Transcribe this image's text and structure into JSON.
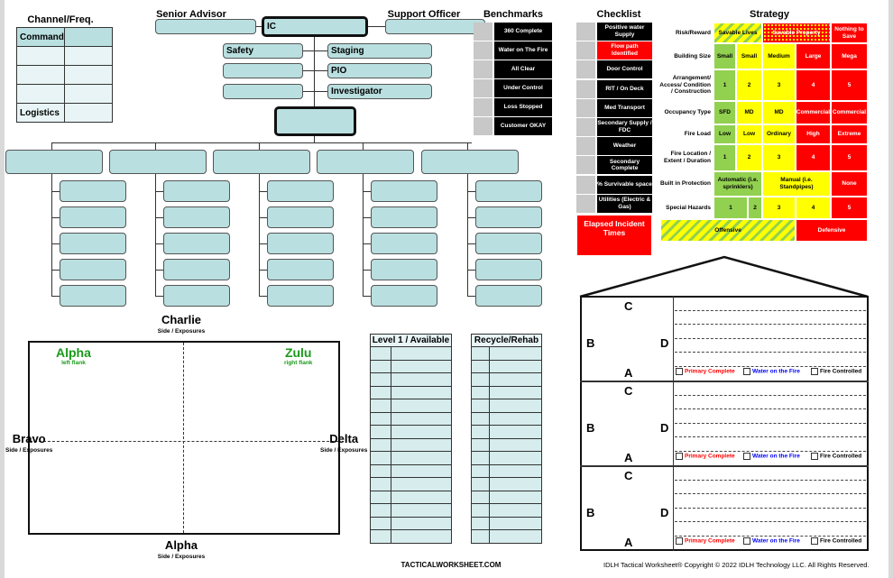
{
  "channel": {
    "title": "Channel/Freq.",
    "rows": [
      "Command",
      "",
      "",
      "",
      "Logistics"
    ]
  },
  "org": {
    "senior_advisor": "Senior Advisor",
    "support_officer": "Support Officer",
    "ic": "IC",
    "left": [
      "Safety",
      "",
      ""
    ],
    "right": [
      "Staging",
      "PIO",
      "Investigator"
    ]
  },
  "benchmarks": {
    "title": "Benchmarks",
    "items": [
      "360 Complete",
      "Water on The Fire",
      "All Clear",
      "Under Control",
      "Loss Stopped",
      "Customer OKAY"
    ]
  },
  "checklist": {
    "title": "Checklist",
    "items": [
      "Positive water Supply",
      "Flow path Identified",
      "Door Control",
      "RIT / On Deck",
      "Med Transport",
      "Secondary Supply / FDC",
      "Weather",
      "Secondary Complete",
      "% Survivable space",
      "Utilities (Electric & Gas)"
    ],
    "highlighted": "Flow path Identified",
    "elapsed": "Elapsed Incident Times"
  },
  "strategy": {
    "title": "Strategy",
    "rows": [
      {
        "label": "Risk/Reward",
        "cells": [
          "Savable Lives",
          "Savable Property",
          "Nothing to Save"
        ]
      },
      {
        "label": "Building Size",
        "cells": [
          "Small",
          "Small",
          "Medium",
          "Large",
          "Mega"
        ]
      },
      {
        "label": "Arrangement/ Access/ Condition / Construction",
        "cells": [
          "1",
          "2",
          "3",
          "4",
          "5"
        ]
      },
      {
        "label": "Occupancy Type",
        "cells": [
          "SFD",
          "MD",
          "MD",
          "Commercial",
          "Commercial"
        ]
      },
      {
        "label": "Fire Load",
        "cells": [
          "Low",
          "Low",
          "Ordinary",
          "High",
          "Extreme"
        ]
      },
      {
        "label": "Fire Location / Extent / Duration",
        "cells": [
          "1",
          "2",
          "3",
          "4",
          "5"
        ]
      },
      {
        "label": "Built in Protection",
        "cells": [
          "Automatic (i.e. sprinklers)",
          "Manual (i.e. Standpipes)",
          "None"
        ]
      },
      {
        "label": "Special Hazards",
        "cells": [
          "1",
          "2",
          "3",
          "4",
          "5"
        ]
      }
    ],
    "offensive": "Offensive",
    "defensive": "Defensive",
    "colors": {
      "green": "#92d050",
      "yellow": "#ffff00",
      "red": "#ff0000"
    }
  },
  "sides": {
    "charlie": "Charlie",
    "bravo": "Bravo",
    "delta": "Delta",
    "alpha": "Alpha",
    "sub": "Side / Exposures",
    "alpha_flank": "Alpha",
    "alpha_flank_sub": "left flank",
    "zulu": "Zulu",
    "zulu_sub": "right flank"
  },
  "tables": {
    "level1": "Level 1 / Available",
    "rehab": "Recycle/Rehab"
  },
  "house": {
    "c": "C",
    "b": "B",
    "d": "D",
    "a": "A",
    "checks": [
      "Primary Complete",
      "Water on the Fire",
      "Fire Controlled"
    ],
    "check_colors": [
      "#ff0000",
      "#0000ff",
      "#000000"
    ]
  },
  "footer": {
    "site": "TACTICALWORKSHEET.COM",
    "copyright": "IDLH Tactical Worksheet®  Copyright © 2022 IDLH Technology LLC. All Rights Reserved."
  }
}
